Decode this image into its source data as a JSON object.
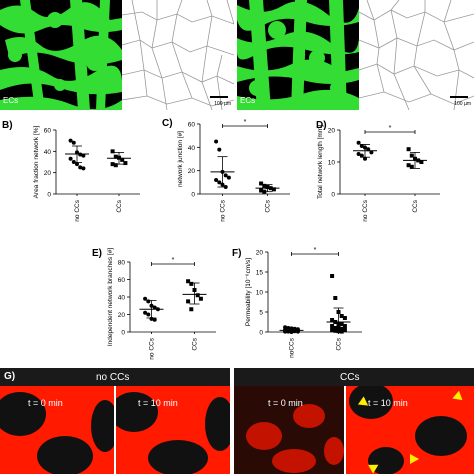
{
  "top_row": {
    "label_ec_left": "ECs",
    "label_ec_right": "ECs",
    "scalebar_left": "100 µm",
    "scalebar_right": "100 µm"
  },
  "colors": {
    "green": "#33dd33",
    "red": "#ff1a00",
    "black": "#000000",
    "marker_arrow": "#ffee00"
  },
  "chart_data": [
    {
      "id": "B",
      "panel_label": "B)",
      "type": "scatter",
      "categories": [
        "no CCs",
        "CCs"
      ],
      "ylabel": "Area fraction network [%]",
      "ylim": [
        0,
        60
      ],
      "yticks": [
        0,
        20,
        40,
        60
      ],
      "series": [
        {
          "name": "no CCs",
          "marker": "circle",
          "mean": 37.5,
          "sd_low": 29.5,
          "sd_high": 45,
          "values": [
            50,
            48,
            39,
            37,
            36,
            33,
            30,
            28,
            25,
            24
          ]
        },
        {
          "name": "CCs",
          "marker": "square",
          "mean": 33.5,
          "sd_low": 28,
          "sd_high": 39,
          "values": [
            40,
            35,
            34,
            32,
            29,
            28,
            27
          ]
        }
      ],
      "significance": null
    },
    {
      "id": "C",
      "panel_label": "C)",
      "type": "scatter",
      "categories": [
        "no CCs",
        "CCs"
      ],
      "ylabel": "network junction [#]",
      "ylim": [
        0,
        60
      ],
      "yticks": [
        0,
        20,
        40,
        60
      ],
      "series": [
        {
          "name": "no CCs",
          "marker": "circle",
          "mean": 19,
          "sd_low": 6,
          "sd_high": 32,
          "values": [
            45,
            38,
            19,
            16,
            14,
            12,
            10,
            8,
            6
          ]
        },
        {
          "name": "CCs",
          "marker": "square",
          "mean": 5,
          "sd_low": 2,
          "sd_high": 8,
          "values": [
            9,
            7,
            6,
            5,
            4,
            3,
            2
          ]
        }
      ],
      "significance": "*"
    },
    {
      "id": "D",
      "panel_label": "D)",
      "type": "scatter",
      "categories": [
        "no CCs",
        "CCs"
      ],
      "ylabel": "Total network length [mm]",
      "ylim": [
        0,
        20
      ],
      "yticks": [
        0,
        10,
        20
      ],
      "series": [
        {
          "name": "no CCs",
          "marker": "circle",
          "mean": 13.5,
          "sd_low": 11.5,
          "sd_high": 15.5,
          "values": [
            16,
            15,
            14.5,
            14,
            13,
            12.5,
            12,
            11
          ]
        },
        {
          "name": "CCs",
          "marker": "square",
          "mean": 10.5,
          "sd_low": 8,
          "sd_high": 13,
          "values": [
            14,
            12,
            11,
            10.5,
            10,
            9,
            8.5
          ]
        }
      ],
      "significance": "*"
    },
    {
      "id": "E",
      "panel_label": "E)",
      "type": "scatter",
      "categories": [
        "no CCs",
        "CCs"
      ],
      "ylabel": "Independent network branches [#]",
      "ylim": [
        0,
        80
      ],
      "yticks": [
        0,
        20,
        40,
        60,
        80
      ],
      "series": [
        {
          "name": "no CCs",
          "marker": "circle",
          "mean": 26,
          "sd_low": 16,
          "sd_high": 36,
          "values": [
            38,
            35,
            30,
            28,
            26,
            22,
            20,
            15,
            14
          ]
        },
        {
          "name": "CCs",
          "marker": "square",
          "mean": 43,
          "sd_low": 32,
          "sd_high": 56,
          "values": [
            58,
            55,
            48,
            42,
            38,
            35,
            26
          ]
        }
      ],
      "significance": "*"
    },
    {
      "id": "F",
      "panel_label": "F)",
      "type": "scatter",
      "categories": [
        "noCCs",
        "CCs"
      ],
      "ylabel": "Permeability [10⁻⁶cm/s]",
      "ylim": [
        0,
        20
      ],
      "yticks": [
        0,
        5,
        10,
        15,
        20
      ],
      "series": [
        {
          "name": "noCCs",
          "marker": "circle",
          "mean": 0.4,
          "sd_low": 0.1,
          "sd_high": 0.8,
          "values": [
            1.2,
            1.0,
            0.9,
            0.8,
            0.7,
            0.6,
            0.5,
            0.5,
            0.4,
            0.4,
            0.3,
            0.3,
            0.2,
            0.2,
            0.1,
            0.1,
            0.1,
            0.0
          ]
        },
        {
          "name": "CCs",
          "marker": "square",
          "mean": 2.5,
          "sd_low": 0.5,
          "sd_high": 6,
          "values": [
            14,
            8.5,
            5,
            4,
            3.5,
            3,
            2.5,
            2,
            2,
            1.5,
            1.5,
            1,
            1,
            0.8,
            0.5,
            0.5,
            0.3,
            0.2,
            0.1
          ]
        }
      ],
      "significance": "*"
    }
  ],
  "panel_g": {
    "label": "G)",
    "group_left": "no CCs",
    "group_right": "CCs",
    "time_0": "t = 0 min",
    "time_10": "t = 10 min"
  }
}
